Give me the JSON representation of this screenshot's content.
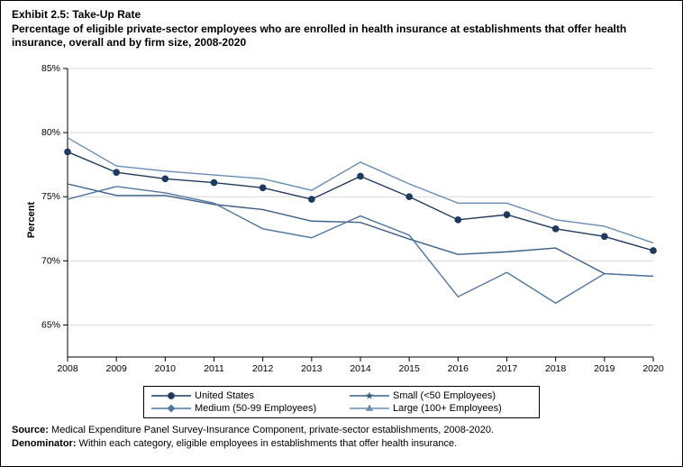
{
  "header": {
    "title": "Exhibit 2.5: Take-Up Rate",
    "subtitle": "Percentage of eligible private-sector employees who are enrolled in health insurance at establishments that offer health insurance, overall and by firm size, 2008-2020"
  },
  "chart": {
    "type": "line",
    "ylabel": "Percent",
    "ylim": [
      62.5,
      85
    ],
    "yticks": [
      65,
      70,
      75,
      80,
      85
    ],
    "ytick_labels": [
      "65%",
      "70%",
      "75%",
      "80%",
      "85%"
    ],
    "xlim": [
      2008,
      2020
    ],
    "xticks": [
      2008,
      2009,
      2010,
      2011,
      2012,
      2013,
      2014,
      2015,
      2016,
      2017,
      2018,
      2019,
      2020
    ],
    "x_labels": [
      "2008",
      "2009",
      "2010",
      "2011",
      "2012",
      "2013",
      "2014",
      "2015",
      "2016",
      "2017",
      "2018",
      "2019",
      "2020"
    ],
    "background_color": "#ffffff",
    "grid_color": "#d9d9d9",
    "line_width": 1.4,
    "marker_size": 4.5,
    "series": [
      {
        "name": "United States",
        "marker": "circle",
        "color": "#1f3a5f",
        "values": [
          78.5,
          76.9,
          76.4,
          76.1,
          75.7,
          74.8,
          76.6,
          75.0,
          73.2,
          73.6,
          72.5,
          71.9,
          70.8
        ]
      },
      {
        "name": "Small (<50 Employees)",
        "marker": "star",
        "color": "#3b5f87",
        "values": [
          76.0,
          75.1,
          75.1,
          74.4,
          74.0,
          73.1,
          73.0,
          71.7,
          70.5,
          70.7,
          71.0,
          69.0,
          68.8
        ]
      },
      {
        "name": "Medium (50-99 Employees)",
        "marker": "diamond",
        "color": "#5076a0",
        "values": [
          74.8,
          75.8,
          75.3,
          74.5,
          72.5,
          71.8,
          73.5,
          72.0,
          67.2,
          69.1,
          66.7,
          69.0,
          68.8
        ]
      },
      {
        "name": "Large (100+ Employees)",
        "marker": "triangle",
        "color": "#6a8db5",
        "values": [
          79.6,
          77.4,
          77.0,
          76.7,
          76.4,
          75.5,
          77.7,
          76.0,
          74.5,
          74.5,
          73.2,
          72.7,
          71.4
        ]
      }
    ]
  },
  "legend": {
    "items": [
      {
        "label": "United States",
        "series_idx": 0
      },
      {
        "label": "Small (<50 Employees)",
        "series_idx": 1
      },
      {
        "label": "Medium (50-99 Employees)",
        "series_idx": 2
      },
      {
        "label": "Large (100+ Employees)",
        "series_idx": 3
      }
    ]
  },
  "footer": {
    "source_label": "Source:",
    "source_text": " Medical Expenditure Panel Survey-Insurance Component, private-sector establishments, 2008-2020.",
    "denom_label": "Denominator:",
    "denom_text": " Within each category, eligible employees in establishments that offer health insurance."
  }
}
